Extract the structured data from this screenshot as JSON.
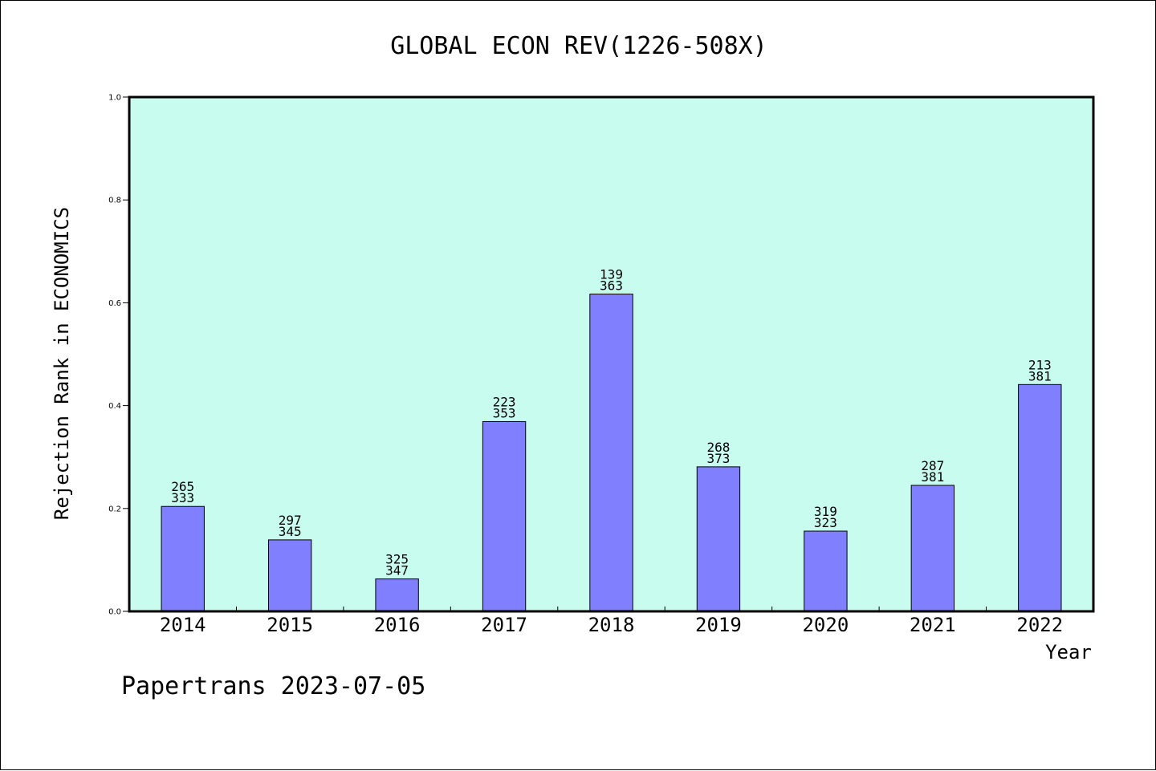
{
  "footer": "Papertrans 2023-07-05",
  "colors": {
    "plot_background": "#c8fcee",
    "bar_fill": "#8080ff",
    "bar_stroke": "#000000"
  },
  "chart_data": {
    "type": "bar",
    "title": "GLOBAL ECON REV(1226-508X)",
    "xlabel": "Year",
    "ylabel": "Rejection Rank in ECONOMICS",
    "ylim": [
      0.0,
      1.0
    ],
    "yticks": [
      "0.0",
      "0.2",
      "0.4",
      "0.6",
      "0.8",
      "1.0"
    ],
    "grid": false,
    "categories": [
      "2014",
      "2015",
      "2016",
      "2017",
      "2018",
      "2019",
      "2020",
      "2021",
      "2022"
    ],
    "values": [
      0.204,
      0.139,
      0.063,
      0.369,
      0.617,
      0.281,
      0.156,
      0.245,
      0.441
    ],
    "labels_top": [
      "265",
      "297",
      "325",
      "223",
      "139",
      "268",
      "319",
      "287",
      "213"
    ],
    "labels_bottom": [
      "333",
      "345",
      "347",
      "353",
      "363",
      "373",
      "323",
      "381",
      "381"
    ]
  }
}
